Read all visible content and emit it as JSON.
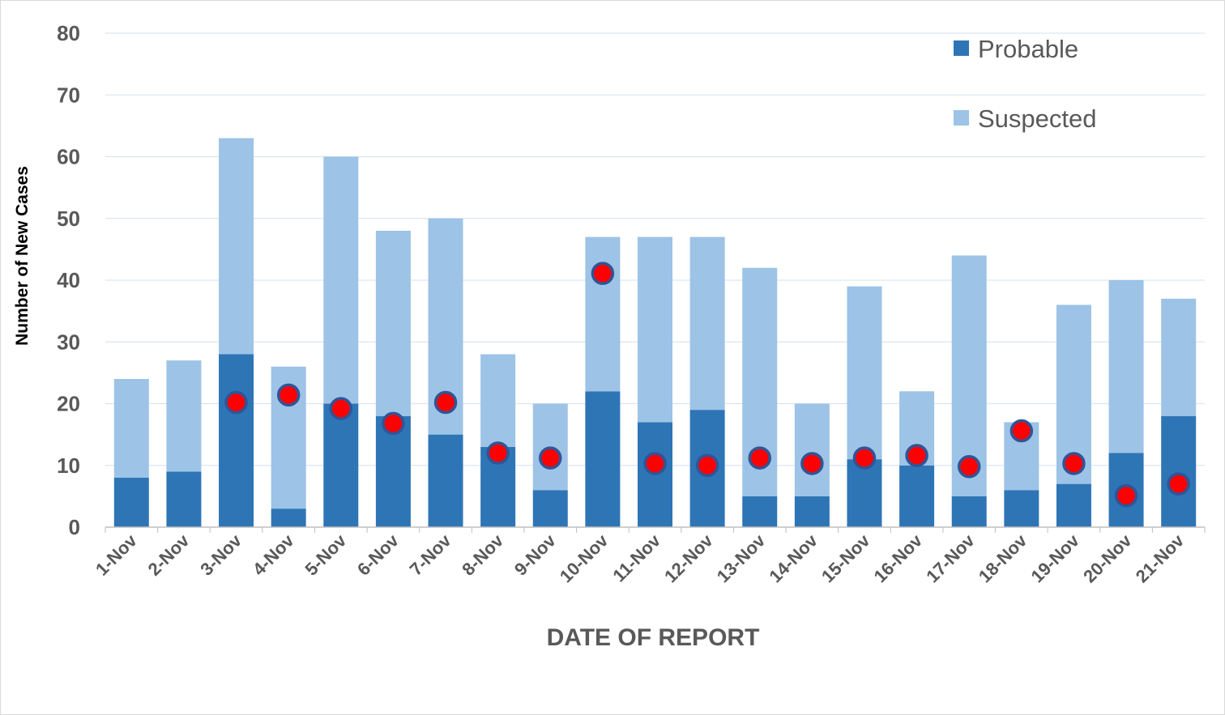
{
  "chart_data": {
    "type": "bar",
    "stacked": true,
    "categories": [
      "1-Nov",
      "2-Nov",
      "3-Nov",
      "4-Nov",
      "5-Nov",
      "6-Nov",
      "7-Nov",
      "8-Nov",
      "9-Nov",
      "10-Nov",
      "11-Nov",
      "12-Nov",
      "13-Nov",
      "14-Nov",
      "15-Nov",
      "16-Nov",
      "17-Nov",
      "18-Nov",
      "19-Nov",
      "20-Nov",
      "21-Nov"
    ],
    "series": [
      {
        "name": "Probable",
        "color": "#2e75b6",
        "values": [
          8,
          9,
          28,
          3,
          20,
          18,
          15,
          13,
          6,
          22,
          17,
          19,
          5,
          5,
          11,
          10,
          5,
          6,
          7,
          12,
          18
        ]
      },
      {
        "name": "Suspected",
        "color": "#9dc3e6",
        "values": [
          16,
          18,
          35,
          23,
          40,
          30,
          35,
          15,
          14,
          25,
          30,
          28,
          37,
          15,
          28,
          12,
          39,
          11,
          29,
          28,
          19
        ]
      }
    ],
    "markers": {
      "color": "#ff0000",
      "edge_color": "#2f5597",
      "values": [
        null,
        null,
        20.2,
        21.4,
        19.2,
        16.8,
        20.2,
        12,
        11.2,
        41.1,
        10.3,
        10,
        11.2,
        10.3,
        11.2,
        11.6,
        9.8,
        15.6,
        10.3,
        5.1,
        7
      ]
    },
    "title": "",
    "xlabel": "DATE OF REPORT",
    "ylabel": "Number of New Cases",
    "ylim": [
      0,
      80
    ],
    "yticks": [
      0,
      10,
      20,
      30,
      40,
      50,
      60,
      70,
      80
    ],
    "grid": true,
    "legend_position": "top-right"
  }
}
